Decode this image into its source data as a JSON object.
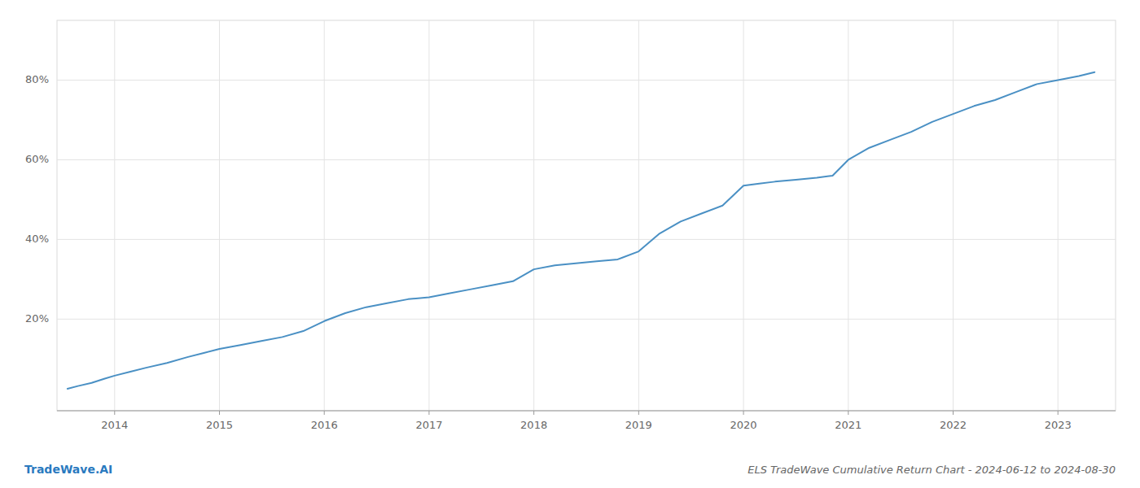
{
  "chart_data": {
    "type": "line",
    "title": "ELS TradeWave Cumulative Return Chart - 2024-06-12 to 2024-08-30",
    "annotations": [
      "TradeWave.AI"
    ],
    "color": "#4a90c4",
    "grid": true,
    "x": [
      2013.55,
      2013.65,
      2013.78,
      2013.9,
      2014.0,
      2014.15,
      2014.3,
      2014.5,
      2014.7,
      2014.85,
      2015.0,
      2015.2,
      2015.4,
      2015.6,
      2015.8,
      2016.0,
      2016.2,
      2016.4,
      2016.6,
      2016.8,
      2017.0,
      2017.2,
      2017.4,
      2017.6,
      2017.8,
      2018.0,
      2018.2,
      2018.4,
      2018.6,
      2018.8,
      2019.0,
      2019.2,
      2019.4,
      2019.6,
      2019.8,
      2020.0,
      2020.15,
      2020.3,
      2020.5,
      2020.7,
      2020.85,
      2021.0,
      2021.2,
      2021.4,
      2021.6,
      2021.8,
      2022.0,
      2022.2,
      2022.4,
      2022.6,
      2022.8,
      2023.0,
      2023.2,
      2023.35
    ],
    "values": [
      2.5,
      3.2,
      4.0,
      5.0,
      5.8,
      6.8,
      7.8,
      9.0,
      10.5,
      11.5,
      12.5,
      13.5,
      14.5,
      15.5,
      17.0,
      19.5,
      21.5,
      23.0,
      24.0,
      25.0,
      25.5,
      26.5,
      27.5,
      28.5,
      29.5,
      32.5,
      33.5,
      34.0,
      34.5,
      35.0,
      37.0,
      41.5,
      44.5,
      46.5,
      48.5,
      53.5,
      54.0,
      54.5,
      55.0,
      55.5,
      56.0,
      60.0,
      63.0,
      65.0,
      67.0,
      69.5,
      71.5,
      73.5,
      75.0,
      77.0,
      79.0,
      80.0,
      81.0,
      82.0
    ],
    "xlim": [
      2013.45,
      2023.55
    ],
    "xticks": [
      2014,
      2015,
      2016,
      2017,
      2018,
      2019,
      2020,
      2021,
      2022,
      2023
    ],
    "ylim": [
      -3,
      95
    ],
    "yticks": [
      {
        "value": 20,
        "label": "20%"
      },
      {
        "value": 40,
        "label": "40%"
      },
      {
        "value": 60,
        "label": "60%"
      },
      {
        "value": 80,
        "label": "80%"
      }
    ]
  }
}
